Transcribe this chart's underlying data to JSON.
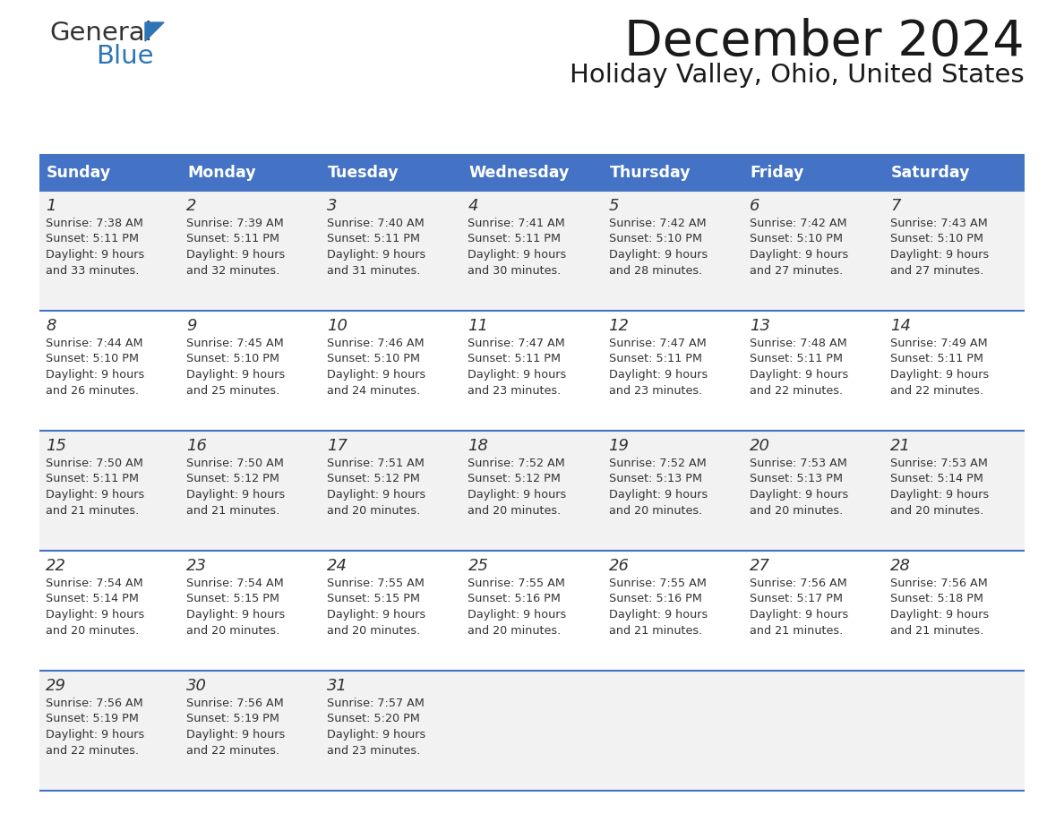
{
  "title": "December 2024",
  "subtitle": "Holiday Valley, Ohio, United States",
  "header_bg_color": "#4472C4",
  "header_text_color": "#FFFFFF",
  "row_bg_even": "#F2F2F2",
  "row_bg_odd": "#FFFFFF",
  "cell_border_color": "#4472C4",
  "text_color": "#333333",
  "day_headers": [
    "Sunday",
    "Monday",
    "Tuesday",
    "Wednesday",
    "Thursday",
    "Friday",
    "Saturday"
  ],
  "calendar_data": [
    [
      {
        "day": "1",
        "sunrise": "7:38 AM",
        "sunset": "5:11 PM",
        "daylight_hrs": "9 hours",
        "daylight_min": "and 33 minutes."
      },
      {
        "day": "2",
        "sunrise": "7:39 AM",
        "sunset": "5:11 PM",
        "daylight_hrs": "9 hours",
        "daylight_min": "and 32 minutes."
      },
      {
        "day": "3",
        "sunrise": "7:40 AM",
        "sunset": "5:11 PM",
        "daylight_hrs": "9 hours",
        "daylight_min": "and 31 minutes."
      },
      {
        "day": "4",
        "sunrise": "7:41 AM",
        "sunset": "5:11 PM",
        "daylight_hrs": "9 hours",
        "daylight_min": "and 30 minutes."
      },
      {
        "day": "5",
        "sunrise": "7:42 AM",
        "sunset": "5:10 PM",
        "daylight_hrs": "9 hours",
        "daylight_min": "and 28 minutes."
      },
      {
        "day": "6",
        "sunrise": "7:42 AM",
        "sunset": "5:10 PM",
        "daylight_hrs": "9 hours",
        "daylight_min": "and 27 minutes."
      },
      {
        "day": "7",
        "sunrise": "7:43 AM",
        "sunset": "5:10 PM",
        "daylight_hrs": "9 hours",
        "daylight_min": "and 27 minutes."
      }
    ],
    [
      {
        "day": "8",
        "sunrise": "7:44 AM",
        "sunset": "5:10 PM",
        "daylight_hrs": "9 hours",
        "daylight_min": "and 26 minutes."
      },
      {
        "day": "9",
        "sunrise": "7:45 AM",
        "sunset": "5:10 PM",
        "daylight_hrs": "9 hours",
        "daylight_min": "and 25 minutes."
      },
      {
        "day": "10",
        "sunrise": "7:46 AM",
        "sunset": "5:10 PM",
        "daylight_hrs": "9 hours",
        "daylight_min": "and 24 minutes."
      },
      {
        "day": "11",
        "sunrise": "7:47 AM",
        "sunset": "5:11 PM",
        "daylight_hrs": "9 hours",
        "daylight_min": "and 23 minutes."
      },
      {
        "day": "12",
        "sunrise": "7:47 AM",
        "sunset": "5:11 PM",
        "daylight_hrs": "9 hours",
        "daylight_min": "and 23 minutes."
      },
      {
        "day": "13",
        "sunrise": "7:48 AM",
        "sunset": "5:11 PM",
        "daylight_hrs": "9 hours",
        "daylight_min": "and 22 minutes."
      },
      {
        "day": "14",
        "sunrise": "7:49 AM",
        "sunset": "5:11 PM",
        "daylight_hrs": "9 hours",
        "daylight_min": "and 22 minutes."
      }
    ],
    [
      {
        "day": "15",
        "sunrise": "7:50 AM",
        "sunset": "5:11 PM",
        "daylight_hrs": "9 hours",
        "daylight_min": "and 21 minutes."
      },
      {
        "day": "16",
        "sunrise": "7:50 AM",
        "sunset": "5:12 PM",
        "daylight_hrs": "9 hours",
        "daylight_min": "and 21 minutes."
      },
      {
        "day": "17",
        "sunrise": "7:51 AM",
        "sunset": "5:12 PM",
        "daylight_hrs": "9 hours",
        "daylight_min": "and 20 minutes."
      },
      {
        "day": "18",
        "sunrise": "7:52 AM",
        "sunset": "5:12 PM",
        "daylight_hrs": "9 hours",
        "daylight_min": "and 20 minutes."
      },
      {
        "day": "19",
        "sunrise": "7:52 AM",
        "sunset": "5:13 PM",
        "daylight_hrs": "9 hours",
        "daylight_min": "and 20 minutes."
      },
      {
        "day": "20",
        "sunrise": "7:53 AM",
        "sunset": "5:13 PM",
        "daylight_hrs": "9 hours",
        "daylight_min": "and 20 minutes."
      },
      {
        "day": "21",
        "sunrise": "7:53 AM",
        "sunset": "5:14 PM",
        "daylight_hrs": "9 hours",
        "daylight_min": "and 20 minutes."
      }
    ],
    [
      {
        "day": "22",
        "sunrise": "7:54 AM",
        "sunset": "5:14 PM",
        "daylight_hrs": "9 hours",
        "daylight_min": "and 20 minutes."
      },
      {
        "day": "23",
        "sunrise": "7:54 AM",
        "sunset": "5:15 PM",
        "daylight_hrs": "9 hours",
        "daylight_min": "and 20 minutes."
      },
      {
        "day": "24",
        "sunrise": "7:55 AM",
        "sunset": "5:15 PM",
        "daylight_hrs": "9 hours",
        "daylight_min": "and 20 minutes."
      },
      {
        "day": "25",
        "sunrise": "7:55 AM",
        "sunset": "5:16 PM",
        "daylight_hrs": "9 hours",
        "daylight_min": "and 20 minutes."
      },
      {
        "day": "26",
        "sunrise": "7:55 AM",
        "sunset": "5:16 PM",
        "daylight_hrs": "9 hours",
        "daylight_min": "and 21 minutes."
      },
      {
        "day": "27",
        "sunrise": "7:56 AM",
        "sunset": "5:17 PM",
        "daylight_hrs": "9 hours",
        "daylight_min": "and 21 minutes."
      },
      {
        "day": "28",
        "sunrise": "7:56 AM",
        "sunset": "5:18 PM",
        "daylight_hrs": "9 hours",
        "daylight_min": "and 21 minutes."
      }
    ],
    [
      {
        "day": "29",
        "sunrise": "7:56 AM",
        "sunset": "5:19 PM",
        "daylight_hrs": "9 hours",
        "daylight_min": "and 22 minutes."
      },
      {
        "day": "30",
        "sunrise": "7:56 AM",
        "sunset": "5:19 PM",
        "daylight_hrs": "9 hours",
        "daylight_min": "and 22 minutes."
      },
      {
        "day": "31",
        "sunrise": "7:57 AM",
        "sunset": "5:20 PM",
        "daylight_hrs": "9 hours",
        "daylight_min": "and 23 minutes."
      },
      null,
      null,
      null,
      null
    ]
  ]
}
